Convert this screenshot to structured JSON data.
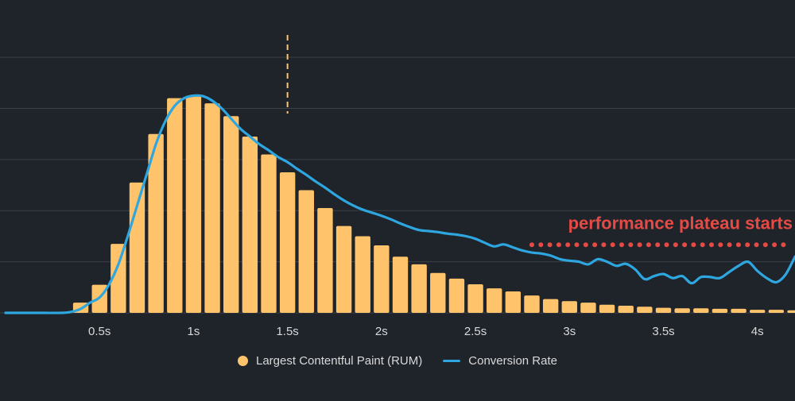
{
  "colors": {
    "background": "#1f232a",
    "grid": "#3b4049",
    "bar": "#ffc46b",
    "line": "#2ea6df",
    "annotation": "#e64a45",
    "marker": "#ffc46b",
    "tick_text": "#d9d9d9"
  },
  "chart_data": {
    "type": "bar",
    "x_unit": "s",
    "xlim": [
      0,
      4.2
    ],
    "ylim": [
      0,
      5.5
    ],
    "x_tick_labels": [
      "0.5s",
      "1s",
      "1.5s",
      "2s",
      "2.5s",
      "3s",
      "3.5s",
      "4s"
    ],
    "x_tick_values": [
      0.5,
      1.0,
      1.5,
      2.0,
      2.5,
      3.0,
      3.5,
      4.0
    ],
    "y_gridlines": [
      1,
      2,
      3,
      4,
      5
    ],
    "bar_width": 0.082,
    "series": [
      {
        "name": "Largest Contentful Paint (RUM)",
        "kind": "bar",
        "x": [
          0.4,
          0.5,
          0.6,
          0.7,
          0.8,
          0.9,
          1.0,
          1.1,
          1.2,
          1.3,
          1.4,
          1.5,
          1.6,
          1.7,
          1.8,
          1.9,
          2.0,
          2.1,
          2.2,
          2.3,
          2.4,
          2.5,
          2.6,
          2.7,
          2.8,
          2.9,
          3.0,
          3.1,
          3.2,
          3.3,
          3.4,
          3.5,
          3.6,
          3.7,
          3.8,
          3.9,
          4.0,
          4.1,
          4.2
        ],
        "values": [
          0.2,
          0.55,
          1.35,
          2.55,
          3.5,
          4.2,
          4.25,
          4.1,
          3.85,
          3.45,
          3.1,
          2.75,
          2.4,
          2.05,
          1.7,
          1.5,
          1.32,
          1.1,
          0.95,
          0.78,
          0.67,
          0.56,
          0.48,
          0.42,
          0.34,
          0.27,
          0.23,
          0.2,
          0.16,
          0.14,
          0.12,
          0.1,
          0.09,
          0.09,
          0.08,
          0.08,
          0.06,
          0.06,
          0.05
        ]
      },
      {
        "name": "Conversion Rate",
        "kind": "line",
        "x": [
          0.0,
          0.1,
          0.2,
          0.3,
          0.35,
          0.4,
          0.45,
          0.5,
          0.55,
          0.6,
          0.65,
          0.7,
          0.75,
          0.8,
          0.85,
          0.9,
          0.95,
          1.0,
          1.05,
          1.1,
          1.15,
          1.2,
          1.25,
          1.3,
          1.35,
          1.4,
          1.45,
          1.5,
          1.55,
          1.6,
          1.65,
          1.7,
          1.75,
          1.8,
          1.85,
          1.9,
          1.95,
          2.0,
          2.05,
          2.1,
          2.15,
          2.2,
          2.25,
          2.3,
          2.35,
          2.4,
          2.45,
          2.5,
          2.55,
          2.6,
          2.65,
          2.7,
          2.75,
          2.8,
          2.85,
          2.9,
          2.95,
          3.0,
          3.05,
          3.1,
          3.15,
          3.2,
          3.25,
          3.3,
          3.35,
          3.4,
          3.45,
          3.5,
          3.55,
          3.6,
          3.65,
          3.7,
          3.75,
          3.8,
          3.85,
          3.9,
          3.95,
          4.0,
          4.05,
          4.1,
          4.15,
          4.2
        ],
        "values": [
          0.0,
          0.0,
          0.0,
          0.0,
          0.02,
          0.08,
          0.2,
          0.3,
          0.55,
          0.95,
          1.5,
          2.1,
          2.7,
          3.3,
          3.75,
          4.05,
          4.2,
          4.25,
          4.24,
          4.15,
          4.0,
          3.8,
          3.6,
          3.45,
          3.3,
          3.18,
          3.05,
          2.95,
          2.82,
          2.7,
          2.57,
          2.45,
          2.32,
          2.2,
          2.1,
          2.02,
          1.96,
          1.9,
          1.83,
          1.75,
          1.68,
          1.62,
          1.6,
          1.58,
          1.55,
          1.53,
          1.5,
          1.45,
          1.37,
          1.3,
          1.34,
          1.28,
          1.22,
          1.18,
          1.16,
          1.12,
          1.05,
          1.02,
          1.0,
          0.95,
          1.05,
          1.0,
          0.92,
          0.96,
          0.85,
          0.66,
          0.72,
          0.76,
          0.68,
          0.72,
          0.58,
          0.7,
          0.7,
          0.68,
          0.8,
          0.92,
          1.0,
          0.82,
          0.68,
          0.6,
          0.75,
          1.1
        ]
      }
    ],
    "reference_line": {
      "x": 1.5
    },
    "annotation": {
      "text": "performance plateau starts",
      "x_start": 2.8,
      "x_end": 4.2,
      "y": 1.3
    }
  },
  "legend": {
    "items": [
      {
        "label": "Largest Contentful Paint (RUM)",
        "shape": "dot"
      },
      {
        "label": "Conversion Rate",
        "shape": "line"
      }
    ]
  }
}
